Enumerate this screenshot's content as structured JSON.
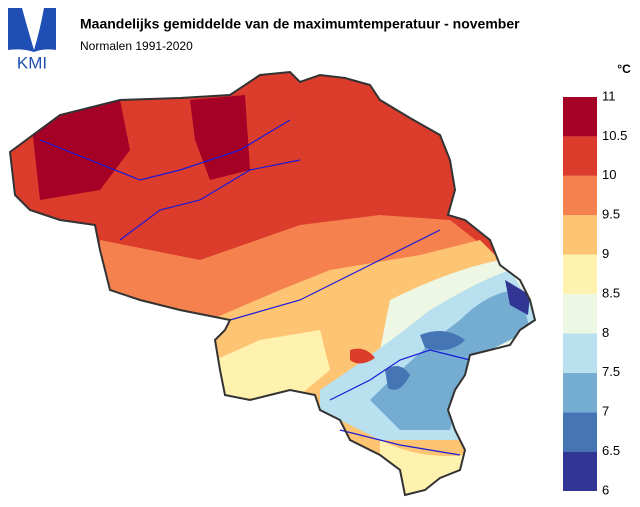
{
  "logo": "KMI",
  "title": "Maandelijks gemiddelde van de maximumtemperatuur - november",
  "subtitle": "Normalen 1991-2020",
  "legend": {
    "unit": "°C",
    "ticks": [
      6,
      6.5,
      7,
      7.5,
      8,
      8.5,
      9,
      9.5,
      10,
      10.5,
      11
    ],
    "colors": [
      "#313695",
      "#4575b4",
      "#74add1",
      "#b9e0ee",
      "#eef7e3",
      "#fff2ae",
      "#fdc474",
      "#f5824e",
      "#dc3c2c",
      "#a50026"
    ]
  }
}
